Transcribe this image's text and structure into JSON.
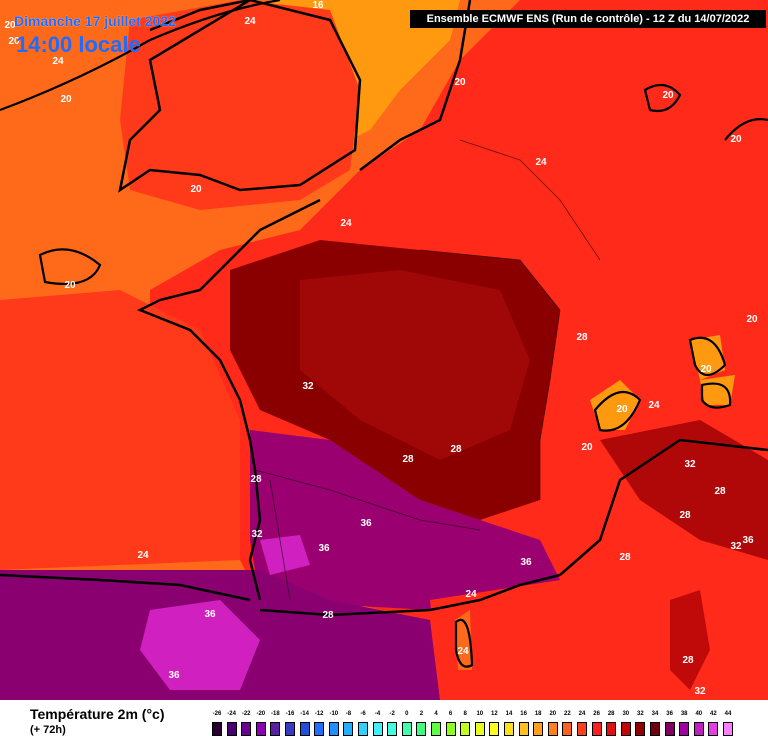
{
  "header": {
    "date": "Dimanche 17 juillet 2022",
    "time": "14:00 locale",
    "run": "Ensemble ECMWF ENS  (Run de contrôle)  -  12 Z du 14/07/2022"
  },
  "footer": {
    "variable": "Température 2m (°c)",
    "lead": "(+ 72h)"
  },
  "scale": {
    "values": [
      "-26",
      "-24",
      "-22",
      "-20",
      "-18",
      "-16",
      "-14",
      "-12",
      "-10",
      "-8",
      "-6",
      "-4",
      "-2",
      "0",
      "2",
      "4",
      "6",
      "8",
      "10",
      "12",
      "14",
      "16",
      "18",
      "20",
      "22",
      "24",
      "26",
      "28",
      "30",
      "32",
      "34",
      "36",
      "38",
      "40",
      "42",
      "44"
    ],
    "colors": [
      "#2a0033",
      "#4a006e",
      "#6a008f",
      "#8a00b0",
      "#5a1fa0",
      "#3a3ac0",
      "#2050d8",
      "#2070ff",
      "#2090ff",
      "#20b0ff",
      "#30d0ff",
      "#40f0ff",
      "#40ffe0",
      "#40ffb0",
      "#40ff80",
      "#60ff40",
      "#90ff20",
      "#c0ff20",
      "#e8ff20",
      "#ffff20",
      "#ffe020",
      "#ffc020",
      "#ffa020",
      "#ff8020",
      "#ff6020",
      "#ff4020",
      "#ff2020",
      "#e01010",
      "#c00808",
      "#900000",
      "#700010",
      "#800060",
      "#a000a0",
      "#c020c0",
      "#e040e0",
      "#ff80ff"
    ]
  },
  "contour_labels": [
    {
      "text": "20"
    },
    {
      "text": "24"
    },
    {
      "text": "16"
    },
    {
      "text": "24"
    },
    {
      "text": "20"
    },
    {
      "text": "20"
    },
    {
      "text": "20"
    },
    {
      "text": "20"
    },
    {
      "text": "24"
    },
    {
      "text": "20"
    },
    {
      "text": "24"
    },
    {
      "text": "20"
    },
    {
      "text": "28"
    },
    {
      "text": "20"
    },
    {
      "text": "20"
    },
    {
      "text": "20"
    },
    {
      "text": "24"
    },
    {
      "text": "20"
    },
    {
      "text": "32"
    },
    {
      "text": "32"
    },
    {
      "text": "28"
    },
    {
      "text": "28"
    },
    {
      "text": "28"
    },
    {
      "text": "28"
    },
    {
      "text": "20"
    },
    {
      "text": "36"
    },
    {
      "text": "32"
    },
    {
      "text": "36"
    },
    {
      "text": "24"
    },
    {
      "text": "36"
    },
    {
      "text": "28"
    },
    {
      "text": "28"
    },
    {
      "text": "36"
    },
    {
      "text": "32"
    },
    {
      "text": "24"
    },
    {
      "text": "28"
    },
    {
      "text": "36"
    },
    {
      "text": "24"
    },
    {
      "text": "28"
    },
    {
      "text": "36"
    },
    {
      "text": "32"
    }
  ],
  "colors": {
    "warm_orange": "#ff6a1a",
    "red": "#ff2a1a",
    "deep_red": "#c00a0a",
    "dark_red": "#8a0000",
    "purple": "#9a0070",
    "magenta": "#d020c0",
    "yellow_orange": "#ff9a10"
  }
}
